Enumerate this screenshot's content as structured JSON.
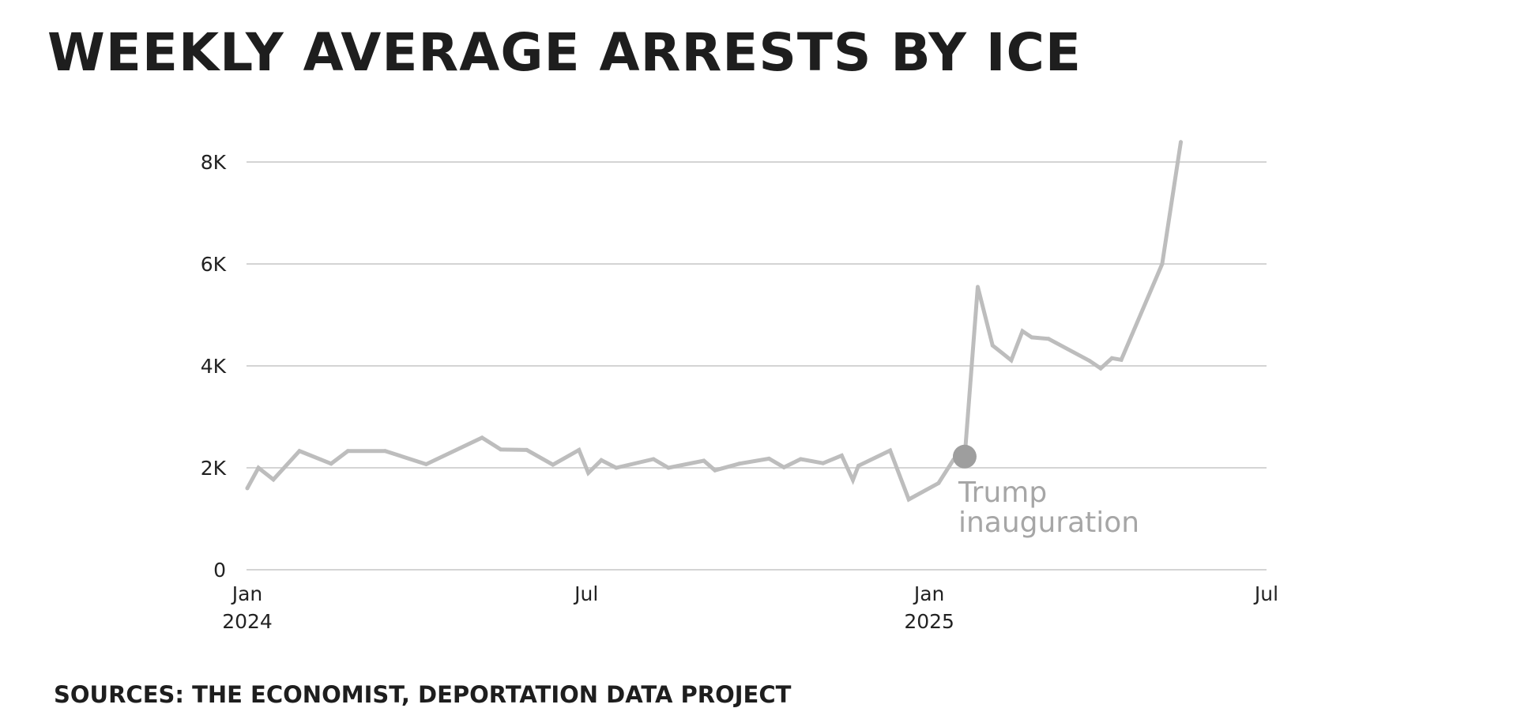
{
  "title": "Weekly average arrests by ICE",
  "sources": "Sources: The Economist, Deportation Data Project",
  "chart_data": {
    "type": "line",
    "title": "Weekly average arrests by ICE",
    "xlabel": "",
    "ylabel": "",
    "ylim": [
      0,
      8000
    ],
    "xlim": [
      "2024-01-01",
      "2025-07-01"
    ],
    "grid": true,
    "y_ticks": [
      {
        "value": 0,
        "label": "0"
      },
      {
        "value": 2000,
        "label": "2K"
      },
      {
        "value": 4000,
        "label": "4K"
      },
      {
        "value": 6000,
        "label": "6K"
      },
      {
        "value": 8000,
        "label": "8K"
      }
    ],
    "x_ticks": [
      {
        "date": "2024-01-01",
        "label": "Jan",
        "sublabel": "2024"
      },
      {
        "date": "2024-07-01",
        "label": "Jul",
        "sublabel": ""
      },
      {
        "date": "2025-01-01",
        "label": "Jan",
        "sublabel": "2025"
      },
      {
        "date": "2025-07-01",
        "label": "Jul",
        "sublabel": ""
      }
    ],
    "series": [
      {
        "color": "#bdbdbd",
        "x": [
          "2024-01-01",
          "2024-01-07",
          "2024-01-15",
          "2024-01-29",
          "2024-02-15",
          "2024-02-24",
          "2024-03-15",
          "2024-04-06",
          "2024-05-06",
          "2024-05-16",
          "2024-05-30",
          "2024-06-13",
          "2024-06-27",
          "2024-07-02",
          "2024-07-09",
          "2024-07-17",
          "2024-08-06",
          "2024-08-14",
          "2024-09-02",
          "2024-09-08",
          "2024-09-21",
          "2024-10-07",
          "2024-10-15",
          "2024-10-24",
          "2024-11-05",
          "2024-11-15",
          "2024-11-21",
          "2024-11-24",
          "2024-12-11",
          "2024-12-21",
          "2025-01-06",
          "2025-01-14",
          "2025-01-20",
          "2025-01-27",
          "2025-02-04",
          "2025-02-14",
          "2025-02-20",
          "2025-02-25",
          "2025-03-06",
          "2025-03-28",
          "2025-04-03",
          "2025-04-09",
          "2025-04-14",
          "2025-05-06",
          "2025-05-16"
        ],
        "y": [
          1600,
          2000,
          1770,
          2330,
          2080,
          2330,
          2330,
          2070,
          2590,
          2360,
          2350,
          2060,
          2350,
          1900,
          2150,
          2000,
          2170,
          2000,
          2140,
          1950,
          2080,
          2180,
          2010,
          2170,
          2090,
          2240,
          1760,
          2040,
          2340,
          1380,
          1700,
          2160,
          2220,
          5550,
          4400,
          4110,
          4680,
          4560,
          4530,
          4100,
          3950,
          4150,
          4120,
          6000,
          8390
        ]
      }
    ],
    "annotations": [
      {
        "label": "Trump inauguration",
        "x": "2025-01-20",
        "y": 2220
      }
    ]
  }
}
